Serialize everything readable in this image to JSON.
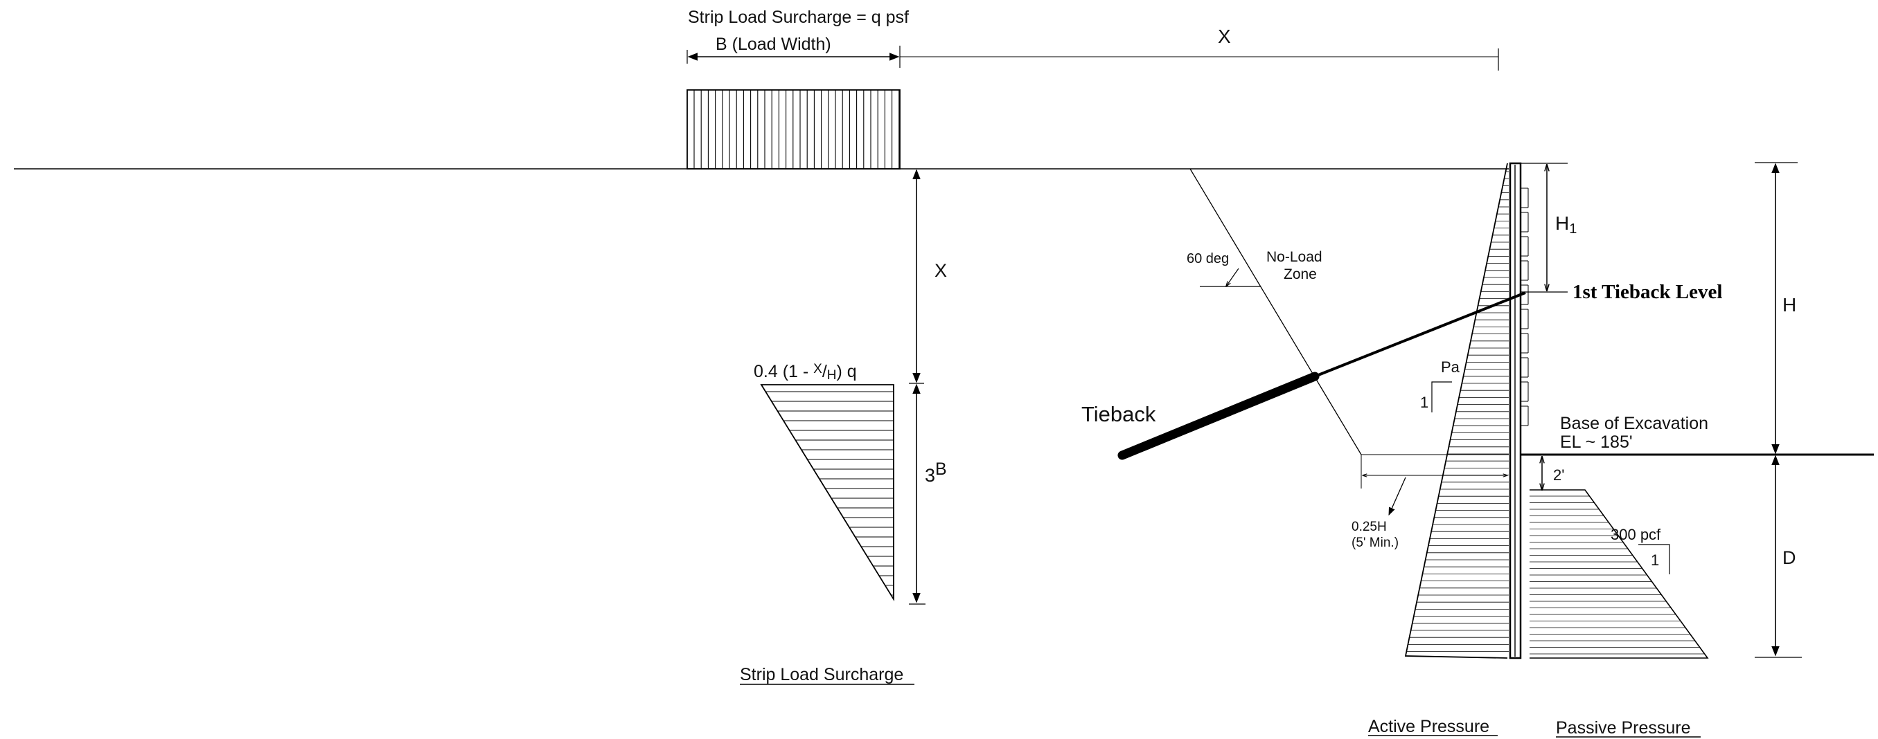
{
  "labels": {
    "strip_load_header": "Strip Load Surcharge = q psf",
    "load_width": "B (Load Width)",
    "x_top": "X",
    "x_vertical": "X",
    "surcharge_formula_a": "0.4 (1 - ",
    "surcharge_formula_x": "X",
    "surcharge_formula_slash": "/",
    "surcharge_formula_h": "H",
    "surcharge_formula_b": ") q",
    "three_b_3": "3",
    "three_b_b": "B",
    "strip_load_caption": "Strip Load Surcharge",
    "sixty_deg": "60 deg",
    "no_load_1": "No-Load",
    "no_load_2": "Zone",
    "h1_main": "H",
    "h1_sub": "1",
    "first_tieback": "1st Tieback Level",
    "h_total": "H",
    "pa": "Pa",
    "pa_one": "1",
    "tieback": "Tieback",
    "base_excavation": "Base of Excavation",
    "el": "EL ~ 185'",
    "two_ft": "2'",
    "quarter_h": "0.25H",
    "five_min": "(5' Min.)",
    "passive_rate": "300 pcf",
    "passive_one": "1",
    "d_label": "D",
    "active_caption": "Active Pressure",
    "passive_caption": "Passive Pressure"
  }
}
